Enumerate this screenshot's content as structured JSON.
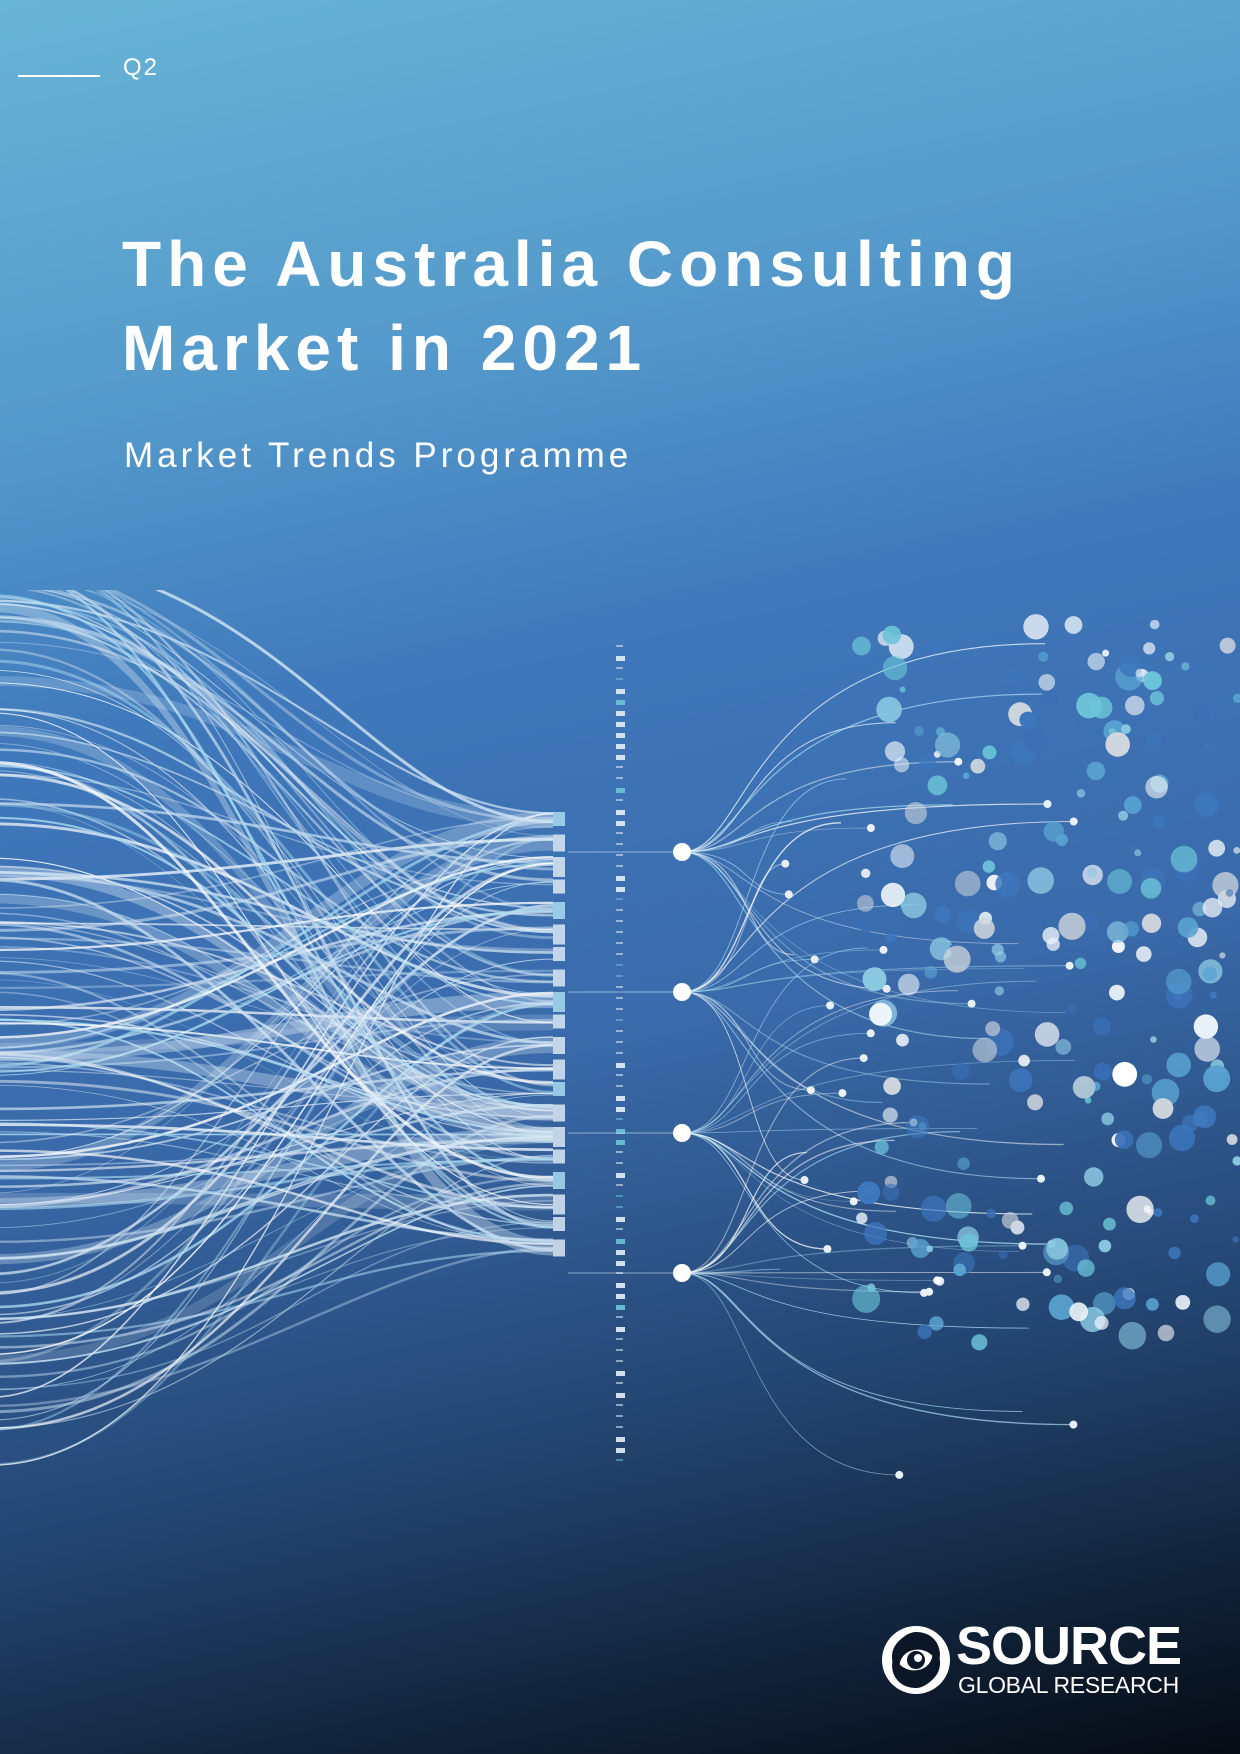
{
  "report": {
    "quarter": "Q2",
    "title_line1": "The Australia Consulting",
    "title_line2": "Market in 2021",
    "subtitle": "Market Trends Programme"
  },
  "brand": {
    "name": "SOURCE",
    "tagline": "GLOBAL RESEARCH"
  },
  "colors": {
    "gradient_top": "#68b4d6",
    "gradient_mid": "#3a6aaa",
    "gradient_bottom": "#060b14",
    "text": "#ffffff",
    "accent_light": "#a9daf0",
    "accent_teal": "#6cc4d8"
  },
  "icons": {
    "brand_mark": "swirl-logo-icon"
  }
}
